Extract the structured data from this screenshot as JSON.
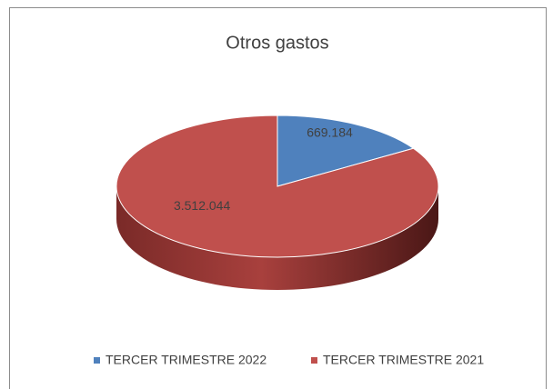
{
  "chart_data": {
    "type": "pie",
    "title": "Otros gastos",
    "categories": [
      "TERCER TRIMESTRE 2022",
      "TERCER TRIMESTRE 2021"
    ],
    "values": [
      669184,
      3512044
    ],
    "value_labels": [
      "669.184",
      "3.512.044"
    ],
    "colors": [
      "#4f81bd",
      "#c0504d"
    ],
    "legend": "bottom"
  }
}
